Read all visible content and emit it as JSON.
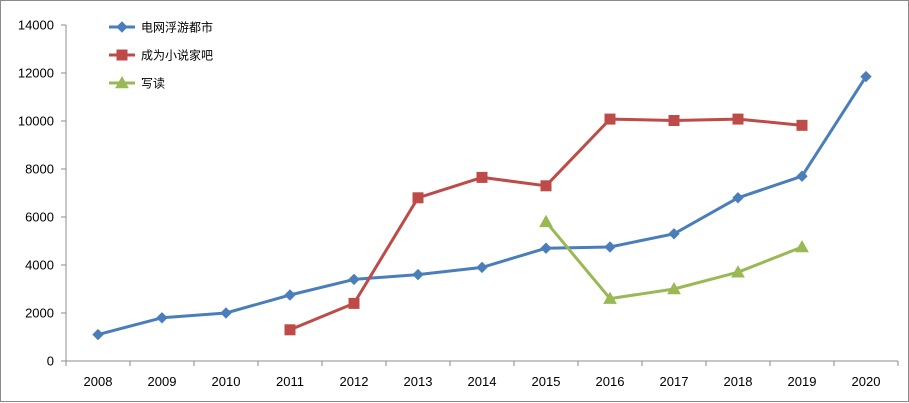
{
  "chart_data": {
    "type": "line",
    "title": "",
    "xlabel": "",
    "ylabel": "",
    "categories": [
      "2008",
      "2009",
      "2010",
      "2011",
      "2012",
      "2013",
      "2014",
      "2015",
      "2016",
      "2017",
      "2018",
      "2019",
      "2020"
    ],
    "ylim": [
      0,
      14000
    ],
    "yticks": [
      0,
      2000,
      4000,
      6000,
      8000,
      10000,
      12000,
      14000
    ],
    "ytick_labels": [
      "0",
      "2000",
      "4000",
      "6000",
      "8000",
      "10000",
      "12000",
      "14000"
    ],
    "grid": false,
    "legend_position": "top-left",
    "series": [
      {
        "name": "电网浮游都市",
        "color": "#4a7ebb",
        "marker": "diamond",
        "values": [
          1100,
          1800,
          2000,
          2750,
          3400,
          3600,
          3900,
          4700,
          4750,
          5300,
          6800,
          7700,
          11850
        ]
      },
      {
        "name": "成为小说家吧",
        "color": "#be4b48",
        "marker": "square",
        "values": [
          null,
          null,
          null,
          1300,
          2400,
          6800,
          7650,
          7300,
          10080,
          10020,
          10080,
          9820,
          null
        ]
      },
      {
        "name": "写读",
        "color": "#98b954",
        "marker": "triangle",
        "values": [
          null,
          null,
          null,
          null,
          null,
          null,
          null,
          5800,
          2600,
          3000,
          3700,
          4750,
          null
        ]
      }
    ]
  }
}
